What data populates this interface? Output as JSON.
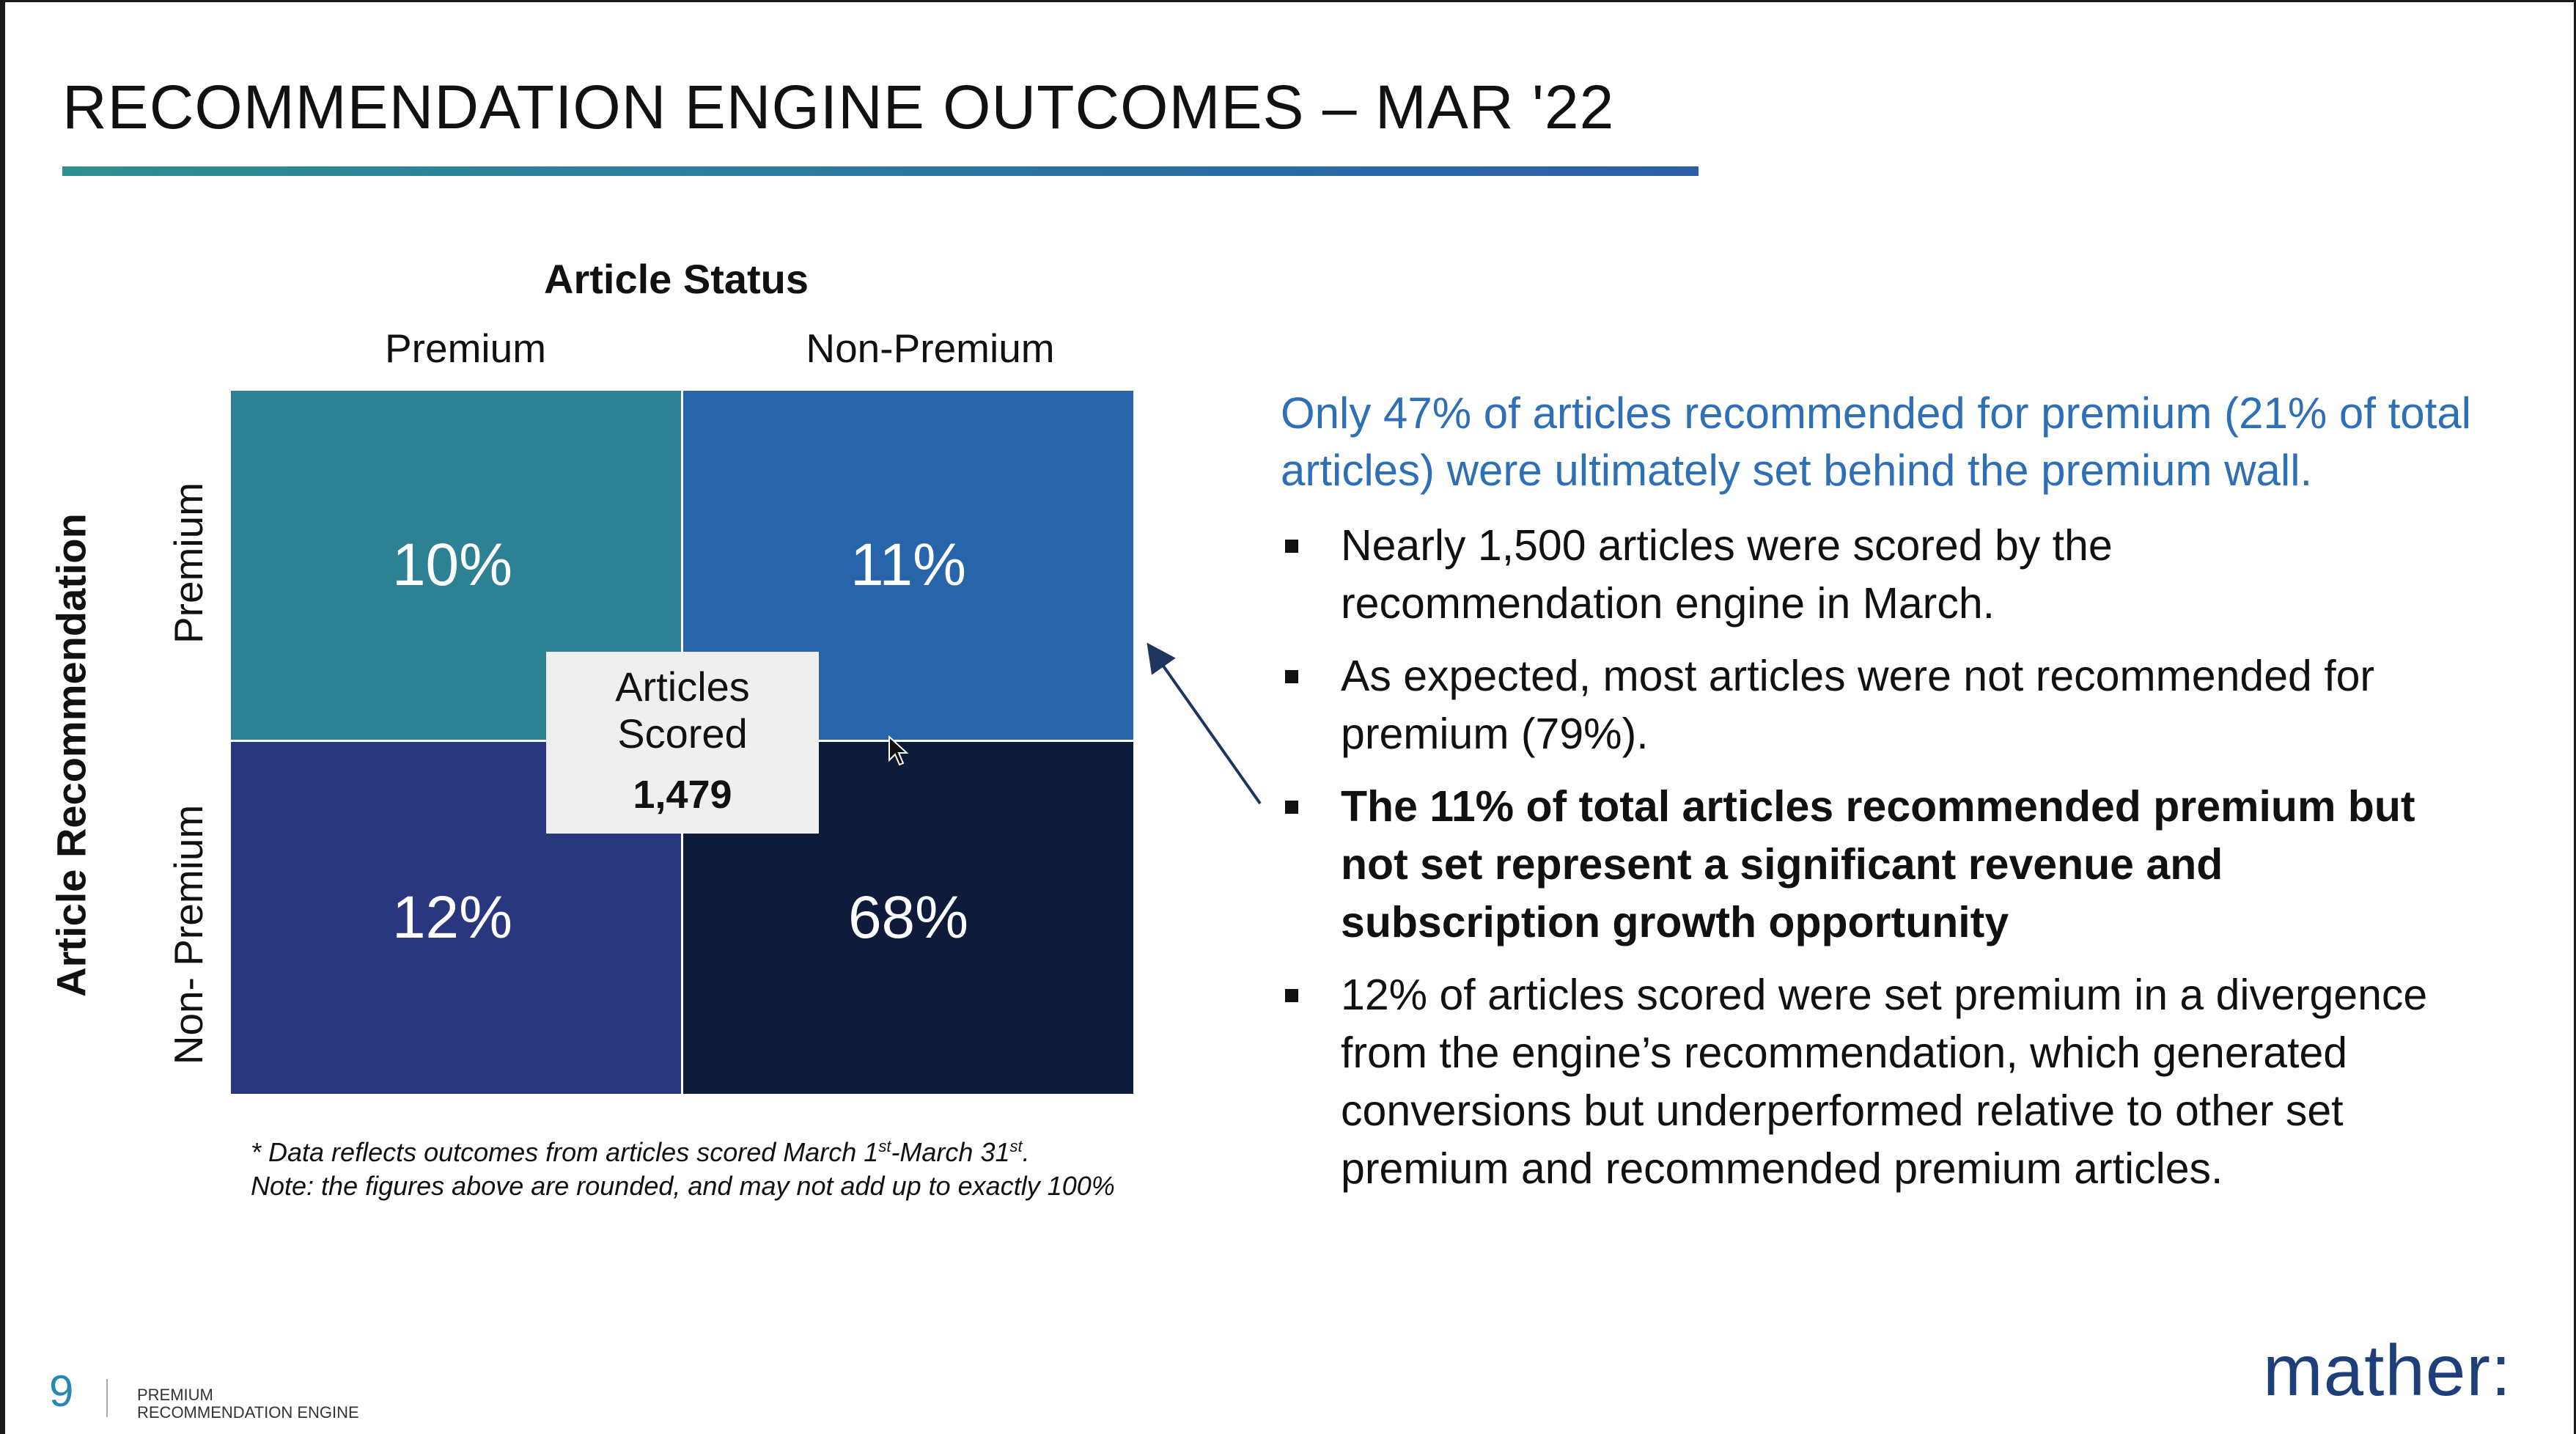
{
  "slide": {
    "title": "RECOMMENDATION ENGINE OUTCOMES – MAR '22",
    "matrix": {
      "column_group_label": "Article Status",
      "columns": [
        "Premium",
        "Non-Premium"
      ],
      "row_group_label": "Article Recommendation",
      "rows": [
        "Premium",
        "Non- Premium"
      ],
      "cells": [
        {
          "value": "10%",
          "color": "#2e8193"
        },
        {
          "value": "11%",
          "color": "#2764a9"
        },
        {
          "value": "12%",
          "color": "#28377e"
        },
        {
          "value": "68%",
          "color": "#0f1b3a"
        }
      ],
      "center_label_line1": "Articles",
      "center_label_line2": "Scored",
      "center_value": "1,479"
    },
    "footnote": {
      "line1_pre": "* Data reflects outcomes from articles scored March 1",
      "sup1": "st",
      "line1_mid": "-March 31",
      "sup2": "st",
      "line1_post": ".",
      "line2": "Note: the figures above are rounded, and may not add up to exactly 100%"
    },
    "callout": "Only 47% of articles recommended for premium (21% of total articles) were ultimately set behind the premium wall.",
    "bullets": [
      {
        "text": "Nearly 1,500 articles were scored by the recommendation engine in March."
      },
      {
        "text": "As expected, most articles were not recommended for premium (79%)."
      },
      {
        "text": "The 11% of total articles recommended premium but not set represent a significant revenue and subscription growth opportunity"
      },
      {
        "text": "12% of articles scored were set premium in a divergence from the engine’s recommendation, which generated conversions but underperformed relative to other set premium and recommended premium articles."
      }
    ],
    "page_number": "9",
    "footer_line1": "PREMIUM",
    "footer_line2": "RECOMMENDATION ENGINE",
    "logo": "mather:"
  },
  "colors": {
    "accent_blue": "#2f6fb5",
    "title_rule_start": "#2e8f8f",
    "title_rule_end": "#2a5ea8",
    "logo": "#1f3f7a"
  }
}
